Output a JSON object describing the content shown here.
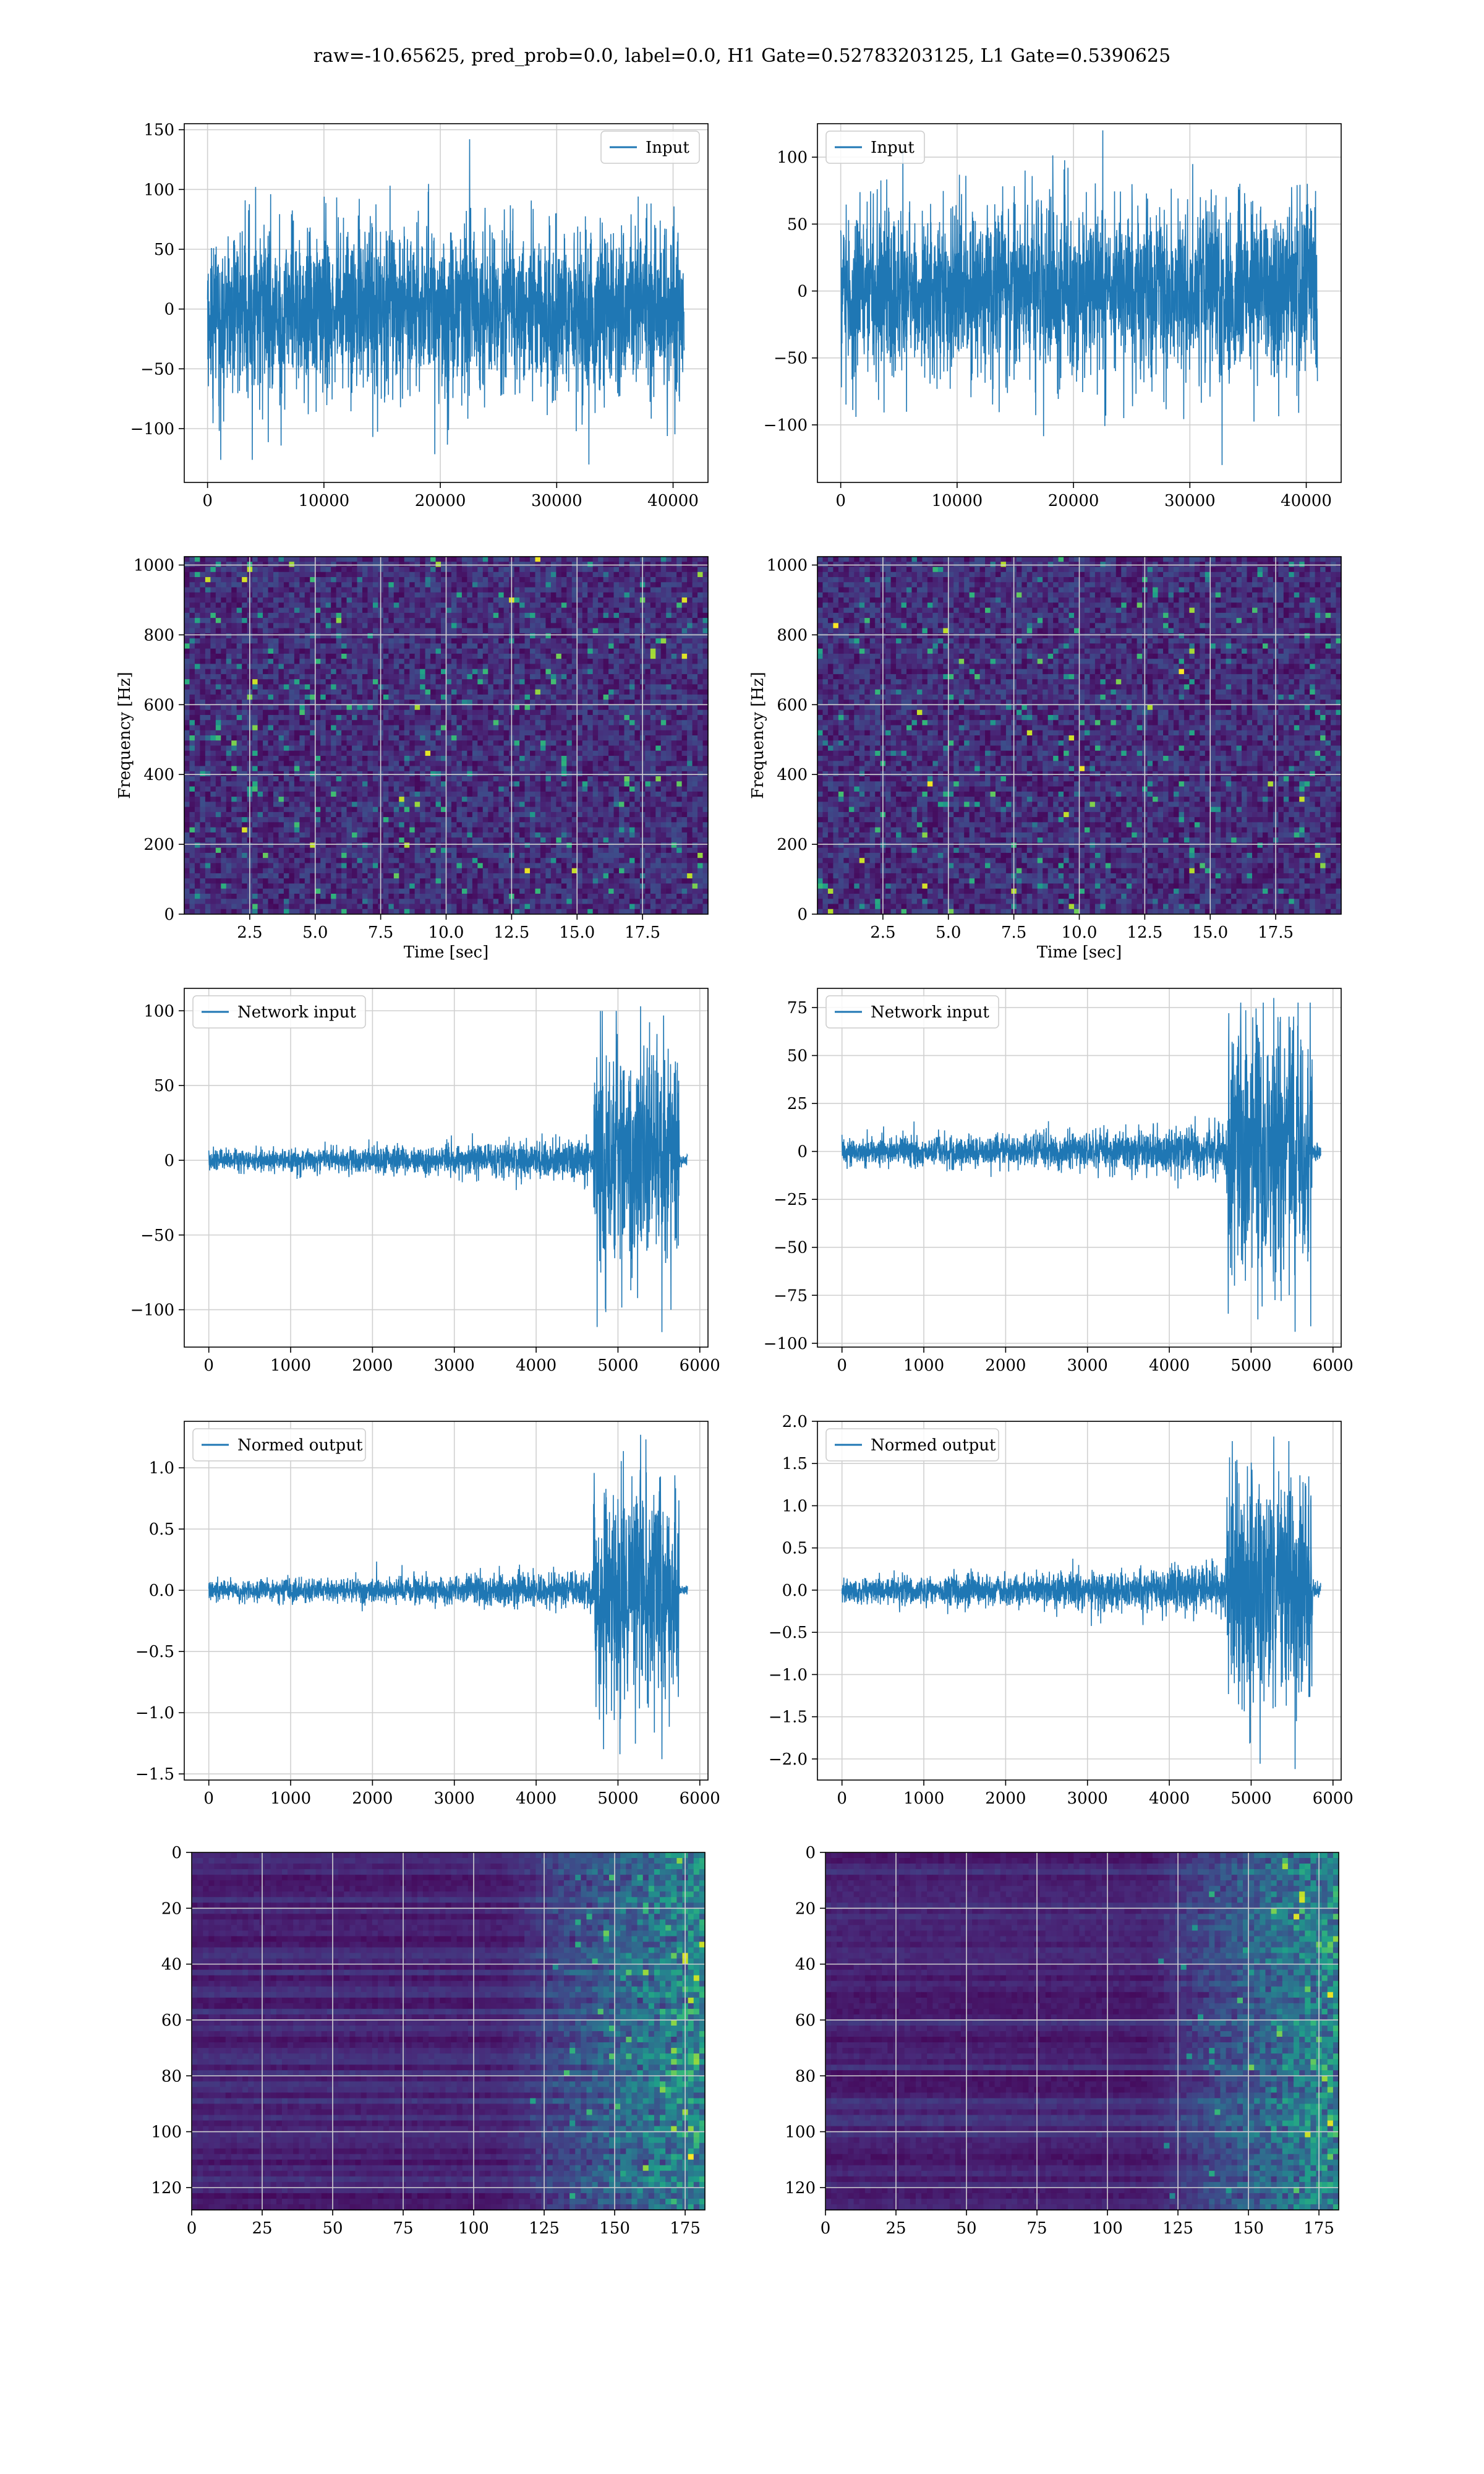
{
  "figure_title": "raw=-10.65625, pred_prob=0.0, label=0.0, H1 Gate=0.52783203125, L1 Gate=0.5390625",
  "colors": {
    "series": "#1f77b4",
    "grid": "#d0d0d0",
    "viridis_low": "#440154",
    "viridis_mid": "#21918c",
    "viridis_high": "#fde725"
  },
  "chart_data": [
    {
      "type": "line",
      "detector": "H1",
      "panel": "input-timeseries",
      "series": [
        {
          "name": "Input",
          "shape": "stationary-noise",
          "x_range": [
            0,
            40960
          ],
          "amplitude_range": [
            -130,
            142
          ]
        }
      ],
      "xlim": [
        -2000,
        43000
      ],
      "ylim": [
        -145,
        155
      ],
      "xticks": [
        0,
        10000,
        20000,
        30000,
        40000
      ],
      "yticks": [
        -100,
        -50,
        0,
        50,
        100,
        150
      ],
      "xlabel": "",
      "ylabel": "",
      "grid": true,
      "legend": "upper right"
    },
    {
      "type": "line",
      "detector": "L1",
      "panel": "input-timeseries",
      "series": [
        {
          "name": "Input",
          "shape": "stationary-noise",
          "x_range": [
            0,
            40960
          ],
          "amplitude_range": [
            -130,
            120
          ]
        }
      ],
      "xlim": [
        -2000,
        43000
      ],
      "ylim": [
        -143,
        125
      ],
      "xticks": [
        0,
        10000,
        20000,
        30000,
        40000
      ],
      "yticks": [
        -100,
        -50,
        0,
        50,
        100
      ],
      "xlabel": "",
      "ylabel": "",
      "grid": true,
      "legend": "upper left"
    },
    {
      "type": "heatmap",
      "detector": "H1",
      "panel": "spectrogram",
      "xlim": [
        0,
        20
      ],
      "ylim": [
        0,
        1024
      ],
      "xticks": [
        2.5,
        5.0,
        7.5,
        10.0,
        12.5,
        15.0,
        17.5
      ],
      "xtick_labels": [
        "2.5",
        "5.0",
        "7.5",
        "10.0",
        "12.5",
        "15.0",
        "17.5"
      ],
      "yticks": [
        0,
        200,
        400,
        600,
        800,
        1000
      ],
      "xlabel": "Time [sec]",
      "ylabel": "Frequency [Hz]",
      "grid": true,
      "colormap": "viridis"
    },
    {
      "type": "heatmap",
      "detector": "L1",
      "panel": "spectrogram",
      "xlim": [
        0,
        20
      ],
      "ylim": [
        0,
        1024
      ],
      "xticks": [
        2.5,
        5.0,
        7.5,
        10.0,
        12.5,
        15.0,
        17.5
      ],
      "xtick_labels": [
        "2.5",
        "5.0",
        "7.5",
        "10.0",
        "12.5",
        "15.0",
        "17.5"
      ],
      "yticks": [
        0,
        200,
        400,
        600,
        800,
        1000
      ],
      "xlabel": "Time [sec]",
      "ylabel": "Frequency [Hz]",
      "grid": true,
      "colormap": "viridis"
    },
    {
      "type": "line",
      "detector": "H1",
      "panel": "network-input",
      "series": [
        {
          "name": "Network input",
          "shape": "chirp",
          "x_range": [
            0,
            5850
          ],
          "base_amplitude": 15,
          "burst_start": 4700,
          "burst_end": 5750,
          "peak_max": 103,
          "peak_min": -115,
          "tail_amplitude": 4
        }
      ],
      "xlim": [
        -300,
        6100
      ],
      "ylim": [
        -125,
        115
      ],
      "xticks": [
        0,
        1000,
        2000,
        3000,
        4000,
        5000,
        6000
      ],
      "yticks": [
        -100,
        -50,
        0,
        50,
        100
      ],
      "xlabel": "",
      "ylabel": "",
      "grid": true,
      "legend": "upper left"
    },
    {
      "type": "line",
      "detector": "L1",
      "panel": "network-input",
      "series": [
        {
          "name": "Network input",
          "shape": "chirp",
          "x_range": [
            0,
            5850
          ],
          "base_amplitude": 15,
          "burst_start": 4700,
          "burst_end": 5750,
          "peak_max": 80,
          "peak_min": -94,
          "tail_amplitude": 4
        }
      ],
      "xlim": [
        -300,
        6100
      ],
      "ylim": [
        -102,
        85
      ],
      "xticks": [
        0,
        1000,
        2000,
        3000,
        4000,
        5000,
        6000
      ],
      "yticks": [
        -100,
        -75,
        -50,
        -25,
        0,
        25,
        50,
        75
      ],
      "xlabel": "",
      "ylabel": "",
      "grid": true,
      "legend": "upper left"
    },
    {
      "type": "line",
      "detector": "H1",
      "panel": "normed-output",
      "series": [
        {
          "name": "Normed output",
          "shape": "chirp",
          "x_range": [
            0,
            5850
          ],
          "base_amplitude": 0.17,
          "burst_start": 4700,
          "burst_end": 5750,
          "peak_max": 1.27,
          "peak_min": -1.38,
          "tail_amplitude": 0.04
        }
      ],
      "xlim": [
        -300,
        6100
      ],
      "ylim": [
        -1.55,
        1.38
      ],
      "xticks": [
        0,
        1000,
        2000,
        3000,
        4000,
        5000,
        6000
      ],
      "yticks": [
        -1.5,
        -1.0,
        -0.5,
        0.0,
        0.5,
        1.0
      ],
      "ytick_labels": [
        "−1.5",
        "−1.0",
        "−0.5",
        "0.0",
        "0.5",
        "1.0"
      ],
      "xlabel": "",
      "ylabel": "",
      "grid": true,
      "legend": "upper left"
    },
    {
      "type": "line",
      "detector": "L1",
      "panel": "normed-output",
      "series": [
        {
          "name": "Normed output",
          "shape": "chirp",
          "x_range": [
            0,
            5850
          ],
          "base_amplitude": 0.32,
          "burst_start": 4700,
          "burst_end": 5750,
          "peak_max": 1.82,
          "peak_min": -2.12,
          "tail_amplitude": 0.08
        }
      ],
      "xlim": [
        -300,
        6100
      ],
      "ylim": [
        -2.25,
        2.0
      ],
      "xticks": [
        0,
        1000,
        2000,
        3000,
        4000,
        5000,
        6000
      ],
      "yticks": [
        -2.0,
        -1.5,
        -1.0,
        -0.5,
        0.0,
        0.5,
        1.0,
        1.5,
        2.0
      ],
      "ytick_labels": [
        "−2.0",
        "−1.5",
        "−1.0",
        "−0.5",
        "0.0",
        "0.5",
        "1.0",
        "1.5",
        "2.0"
      ],
      "xlabel": "",
      "ylabel": "",
      "grid": true,
      "legend": "upper left"
    },
    {
      "type": "heatmap",
      "detector": "H1",
      "panel": "feature-map",
      "xlim": [
        0,
        182
      ],
      "ylim": [
        128,
        0
      ],
      "xticks": [
        0,
        25,
        50,
        75,
        100,
        125,
        150,
        175
      ],
      "yticks": [
        0,
        20,
        40,
        60,
        80,
        100,
        120
      ],
      "xlabel": "",
      "ylabel": "",
      "grid": true,
      "colormap": "viridis",
      "activity_onset": 110
    },
    {
      "type": "heatmap",
      "detector": "L1",
      "panel": "feature-map",
      "xlim": [
        0,
        182
      ],
      "ylim": [
        128,
        0
      ],
      "xticks": [
        0,
        25,
        50,
        75,
        100,
        125,
        150,
        175
      ],
      "yticks": [
        0,
        20,
        40,
        60,
        80,
        100,
        120
      ],
      "xlabel": "",
      "ylabel": "",
      "grid": true,
      "colormap": "viridis",
      "activity_onset": 115
    }
  ]
}
